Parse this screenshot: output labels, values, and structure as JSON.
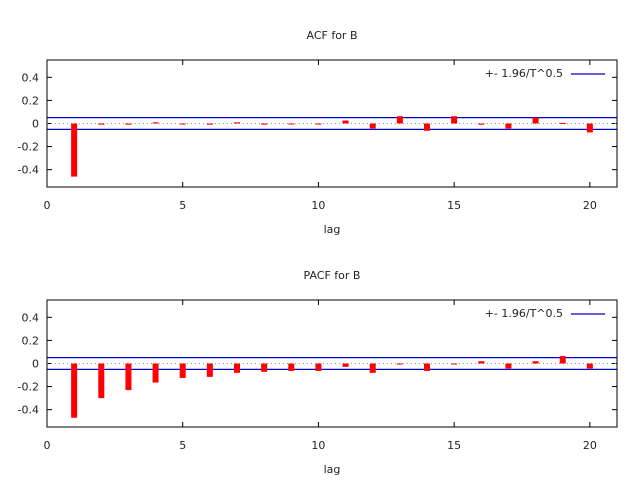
{
  "chart_data": [
    {
      "type": "bar",
      "title": "ACF for B",
      "xlabel": "lag",
      "ylabel": "",
      "xlim": [
        0,
        21
      ],
      "ylim": [
        -0.55,
        0.55
      ],
      "xticks": [
        0,
        5,
        10,
        15,
        20
      ],
      "yticks": [
        -0.4,
        -0.2,
        0,
        0.2,
        0.4
      ],
      "ytick_labels": [
        "-0.4",
        "-0.2",
        "0",
        "0.2",
        "0.4"
      ],
      "legend": {
        "label": "+- 1.96/T^0.5",
        "placement": "top-right"
      },
      "bound": 0.051,
      "x": [
        1,
        2,
        3,
        4,
        5,
        6,
        7,
        8,
        9,
        10,
        11,
        12,
        13,
        14,
        15,
        16,
        17,
        18,
        19,
        20
      ],
      "values": [
        -0.46,
        -0.01,
        -0.01,
        0.01,
        0.0,
        -0.01,
        0.01,
        -0.01,
        0.0,
        -0.005,
        0.026,
        -0.043,
        0.063,
        -0.063,
        0.063,
        -0.01,
        -0.043,
        0.051,
        0.005,
        -0.077
      ],
      "bar_color": "#ff0000",
      "bound_color": "#0000cc"
    },
    {
      "type": "bar",
      "title": "PACF for B",
      "xlabel": "lag",
      "ylabel": "",
      "xlim": [
        0,
        21
      ],
      "ylim": [
        -0.55,
        0.55
      ],
      "xticks": [
        0,
        5,
        10,
        15,
        20
      ],
      "yticks": [
        -0.4,
        -0.2,
        0,
        0.2,
        0.4
      ],
      "ytick_labels": [
        "-0.4",
        "-0.2",
        "0",
        "0.2",
        "0.4"
      ],
      "legend": {
        "label": "+- 1.96/T^0.5",
        "placement": "top-right"
      },
      "bound": 0.051,
      "x": [
        1,
        2,
        3,
        4,
        5,
        6,
        7,
        8,
        9,
        10,
        11,
        12,
        13,
        14,
        15,
        16,
        17,
        18,
        19,
        20
      ],
      "values": [
        -0.47,
        -0.3,
        -0.23,
        -0.165,
        -0.125,
        -0.116,
        -0.081,
        -0.072,
        -0.064,
        -0.064,
        -0.029,
        -0.081,
        -0.005,
        -0.064,
        0.0,
        0.02,
        -0.043,
        0.02,
        0.064,
        -0.043
      ],
      "bar_color": "#ff0000",
      "bound_color": "#0000cc"
    }
  ]
}
